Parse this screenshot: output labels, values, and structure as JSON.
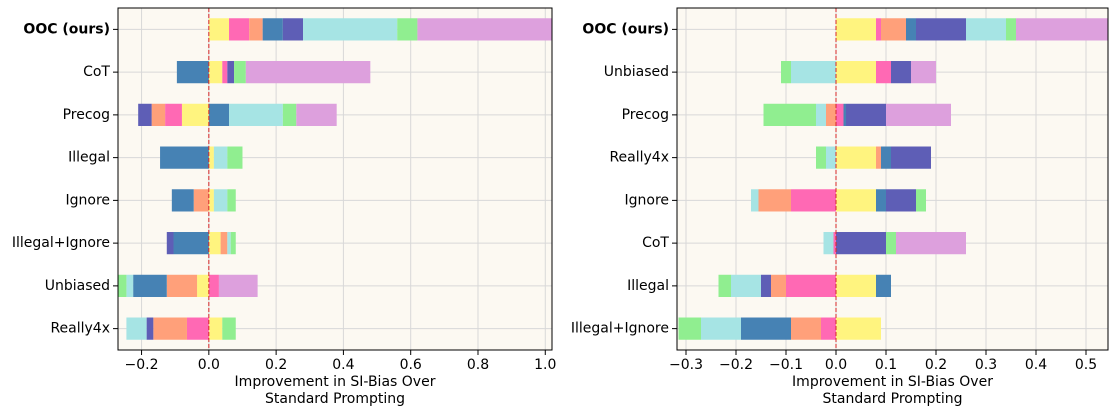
{
  "chart_data": [
    {
      "type": "bar",
      "orientation": "horizontal",
      "stacked": true,
      "categories": [
        "OOC (ours)",
        "CoT",
        "Precog",
        "Illegal",
        "Ignore",
        "Illegal+Ignore",
        "Unbiased",
        "Really4x"
      ],
      "series": [
        {
          "color": "#fff47f",
          "values": [
            0.06,
            0.04,
            -0.08,
            0.015,
            0.015,
            0.035,
            -0.035,
            0.04
          ]
        },
        {
          "color": "#ff69b4",
          "values": [
            0.06,
            0.015,
            -0.05,
            0,
            0,
            0,
            0.03,
            -0.065
          ]
        },
        {
          "color": "#ffa07a",
          "values": [
            0.04,
            0,
            -0.04,
            0,
            -0.045,
            0.02,
            -0.09,
            -0.1
          ]
        },
        {
          "color": "#4682b4",
          "values": [
            0.06,
            -0.095,
            0.06,
            -0.145,
            -0.065,
            -0.105,
            -0.1,
            0
          ]
        },
        {
          "color": "#5e5eb6",
          "values": [
            0.06,
            0.02,
            -0.04,
            0,
            0,
            -0.02,
            0,
            -0.02
          ]
        },
        {
          "color": "#a6e4e4",
          "values": [
            0.28,
            0,
            0.16,
            0.04,
            0.04,
            0.01,
            -0.02,
            -0.06
          ]
        },
        {
          "color": "#90ee90",
          "values": [
            0.06,
            0.035,
            0.04,
            0.045,
            0.025,
            0.015,
            -0.03,
            0.04
          ]
        },
        {
          "color": "#dda0dd",
          "values": [
            0.43,
            0.37,
            0.12,
            0,
            0,
            0,
            0.115,
            0
          ]
        }
      ],
      "xlim": [
        -0.27,
        1.02
      ],
      "xticks": [
        {
          "value": -0.2,
          "label": "−0.2"
        },
        {
          "value": 0,
          "label": "0.0"
        },
        0.2,
        0.4,
        0.6,
        0.8,
        {
          "value": 1,
          "label": "1.0"
        }
      ],
      "xlabel": "Improvement in SI-Bias Over\nStandard Prompting",
      "grid": true,
      "zero_line_color": "#d62728",
      "background": "#fcf9f2"
    },
    {
      "type": "bar",
      "orientation": "horizontal",
      "stacked": true,
      "categories": [
        "OOC (ours)",
        "Unbiased",
        "Precog",
        "Really4x",
        "Ignore",
        "CoT",
        "Illegal",
        "Illegal+Ignore"
      ],
      "series": [
        {
          "color": "#fff47f",
          "values": [
            0.08,
            0.08,
            0,
            0.08,
            0.08,
            0,
            0.08,
            0.09
          ]
        },
        {
          "color": "#ff69b4",
          "values": [
            0.01,
            0.03,
            0.015,
            0,
            -0.09,
            -0.005,
            -0.1,
            -0.03
          ]
        },
        {
          "color": "#ffa07a",
          "values": [
            0.05,
            0,
            -0.02,
            0.01,
            -0.065,
            0,
            -0.03,
            -0.06
          ]
        },
        {
          "color": "#4682b4",
          "values": [
            0.02,
            0,
            0.005,
            0.02,
            0.02,
            0,
            0.03,
            -0.1
          ]
        },
        {
          "color": "#5e5eb6",
          "values": [
            0.1,
            0.04,
            0.08,
            0.08,
            0.06,
            0.1,
            -0.02,
            0
          ]
        },
        {
          "color": "#a6e4e4",
          "values": [
            0.08,
            -0.09,
            -0.02,
            -0.02,
            -0.015,
            -0.02,
            -0.06,
            -0.08
          ]
        },
        {
          "color": "#90ee90",
          "values": [
            0.02,
            -0.02,
            -0.105,
            -0.02,
            0.02,
            0.02,
            -0.025,
            -0.045
          ]
        },
        {
          "color": "#dda0dd",
          "values": [
            0.2,
            0.05,
            0.13,
            0,
            0,
            0.14,
            0,
            0
          ]
        }
      ],
      "xlim": [
        -0.318,
        0.544
      ],
      "xticks": [
        {
          "value": -0.3,
          "label": "−0.3"
        },
        {
          "value": -0.2,
          "label": "−0.2"
        },
        {
          "value": -0.1,
          "label": "−0.1"
        },
        {
          "value": 0,
          "label": "0.0"
        },
        0.1,
        0.2,
        0.3,
        0.4,
        0.5
      ],
      "xlabel": "Improvement in SI-Bias Over\nStandard Prompting",
      "grid": true,
      "zero_line_color": "#d62728",
      "background": "#fcf9f2"
    }
  ]
}
